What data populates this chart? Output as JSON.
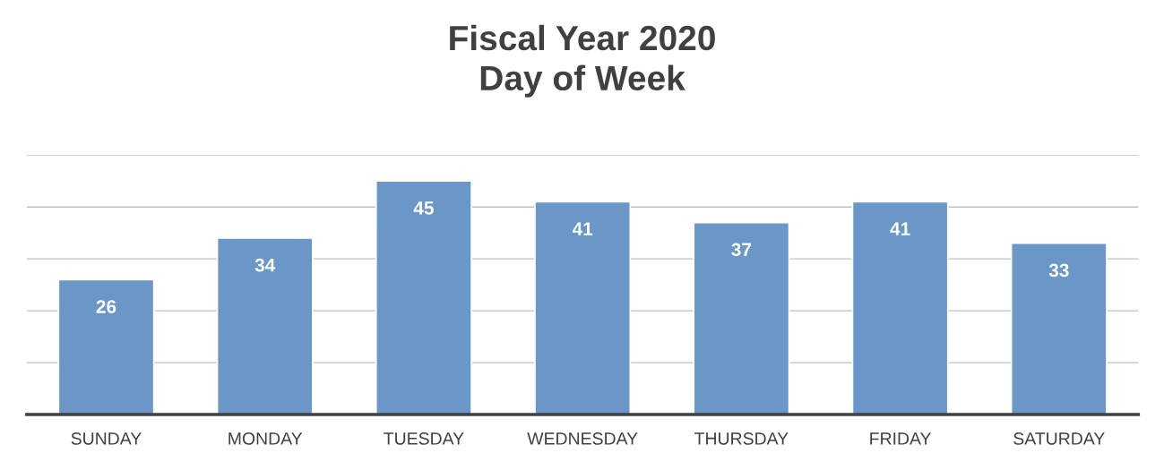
{
  "chart_data": {
    "type": "bar",
    "title": "Fiscal Year 2020\nDay of Week",
    "categories": [
      "SUNDAY",
      "MONDAY",
      "TUESDAY",
      "WEDNESDAY",
      "THURSDAY",
      "FRIDAY",
      "SATURDAY"
    ],
    "values": [
      26,
      34,
      45,
      41,
      37,
      41,
      33
    ],
    "color": "#6a96c8",
    "ylim": [
      0,
      50
    ],
    "yticks": [
      {
        "value": 0,
        "label": null
      },
      {
        "value": 10,
        "label": null
      },
      {
        "value": 20,
        "label": null
      },
      {
        "value": 30,
        "label": null
      },
      {
        "value": 40,
        "label": null
      },
      {
        "value": 50,
        "label": null
      }
    ],
    "tick_labels": "x",
    "grid": "y",
    "data_labels": true
  }
}
